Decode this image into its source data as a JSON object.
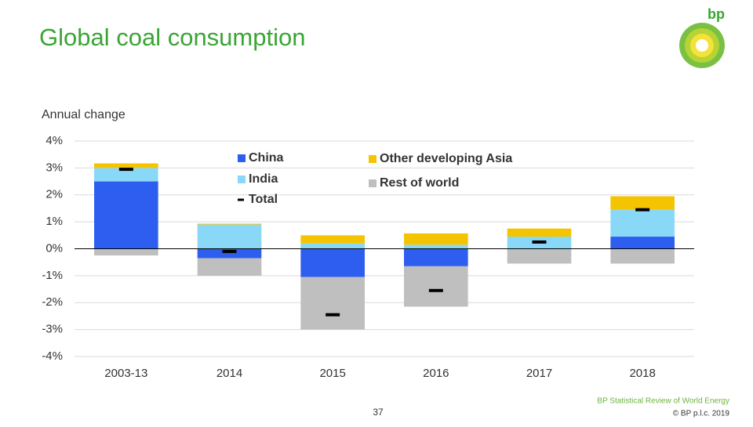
{
  "chart_data": {
    "type": "bar",
    "stacked": true,
    "title": "Global coal consumption",
    "y_label": "Annual change",
    "categories": [
      "2003-13",
      "2014",
      "2015",
      "2016",
      "2017",
      "2018"
    ],
    "series": [
      {
        "name": "China",
        "color": "#2e5ef0",
        "values": [
          2.5,
          -0.35,
          -1.05,
          -0.65,
          0,
          0.45
        ]
      },
      {
        "name": "India",
        "color": "#8ad8f7",
        "values": [
          0.5,
          0.9,
          0.2,
          0.15,
          0.45,
          1.0
        ]
      },
      {
        "name": "Other developing Asia",
        "color": "#f5c400",
        "values": [
          0.17,
          0.03,
          0.3,
          0.42,
          0.3,
          0.5
        ]
      },
      {
        "name": "Rest of world",
        "color": "#bfbfbf",
        "values": [
          -0.25,
          -0.65,
          -1.95,
          -1.5,
          -0.55,
          -0.55
        ]
      },
      {
        "name": "Total",
        "color": "#000000",
        "marker": "dash",
        "values": [
          2.95,
          -0.1,
          -2.45,
          -1.55,
          0.25,
          1.45
        ]
      }
    ],
    "ylim": [
      -4,
      4
    ],
    "yticks": [
      {
        "value": -4,
        "label": "-4%"
      },
      {
        "value": -3,
        "label": "-3%"
      },
      {
        "value": -2,
        "label": "-2%"
      },
      {
        "value": -1,
        "label": "-1%"
      },
      {
        "value": 0,
        "label": "0%"
      },
      {
        "value": 1,
        "label": "1%"
      },
      {
        "value": 2,
        "label": "2%"
      },
      {
        "value": 3,
        "label": "3%"
      },
      {
        "value": 4,
        "label": "4%"
      }
    ],
    "grid": true
  },
  "footer": {
    "source": "BP Statistical Review of World Energy",
    "copyright": "© BP p.l.c. 2019",
    "page": "37",
    "logo": "bp"
  }
}
